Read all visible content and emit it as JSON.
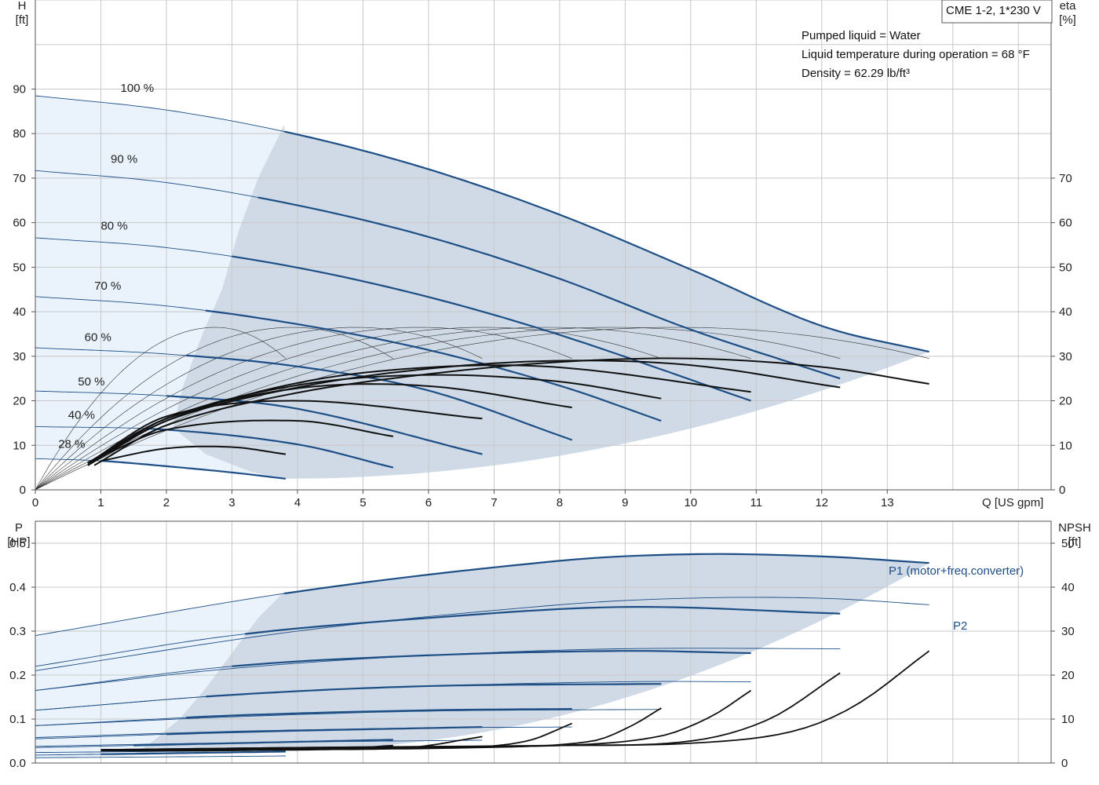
{
  "colors": {
    "grid": "#c8c8c8",
    "frame": "#555555",
    "region_light": "#eaf3fc",
    "region_dark": "#cfdae6",
    "pump_curve": "#1d4e85",
    "eff_curve": "#111111",
    "thin_line": "#333333"
  },
  "chart_data": [
    {
      "type": "line",
      "title": "CME 1-2, 1*230 V",
      "annotations": [
        "Pumped liquid = Water",
        "Liquid temperature during operation = 68 °F",
        "Density = 62.29 lb/ft³"
      ],
      "xlabel": "Q [US gpm]",
      "ylabel": "H\n[ft]",
      "y2label": "eta\n[%]",
      "ylabel_top": "H",
      "ylabel_unit": "[ft]",
      "y2label_top": "eta",
      "y2label_unit": "[%]",
      "xlim": [
        0,
        15.5
      ],
      "ylim": [
        0,
        110
      ],
      "y2lim": [
        0,
        110
      ],
      "x_ticks": [
        0,
        1,
        2,
        3,
        4,
        5,
        6,
        7,
        8,
        9,
        10,
        11,
        12,
        13
      ],
      "y_ticks": [
        0,
        10,
        20,
        30,
        40,
        50,
        60,
        70,
        80,
        90
      ],
      "y2_ticks": [
        0,
        10,
        20,
        30,
        40,
        50,
        60,
        70
      ],
      "grid": true,
      "series": [
        {
          "name": "100 %",
          "x": [
            0,
            2,
            4,
            6,
            8,
            10,
            12,
            13.64
          ],
          "values": [
            88.5,
            85.3,
            79.8,
            72,
            61.8,
            49.5,
            36.8,
            31
          ]
        },
        {
          "name": "90 %",
          "x": [
            0,
            2,
            4,
            6,
            8,
            10,
            12.28
          ],
          "values": [
            71.7,
            69,
            63.9,
            56.8,
            47.4,
            36,
            25
          ]
        },
        {
          "name": "80 %",
          "x": [
            0,
            2,
            4,
            6,
            8,
            10.92
          ],
          "values": [
            56.6,
            54.4,
            49.9,
            43.3,
            34.8,
            20
          ]
        },
        {
          "name": "70 %",
          "x": [
            0,
            2,
            4,
            6,
            8,
            9.55
          ],
          "values": [
            43.4,
            41.3,
            37.2,
            31.4,
            23.4,
            15.5
          ]
        },
        {
          "name": "60 %",
          "x": [
            0,
            2,
            4,
            6,
            8.19
          ],
          "values": [
            31.9,
            30.5,
            27.7,
            22.3,
            11.2
          ]
        },
        {
          "name": "50 %",
          "x": [
            0,
            2,
            4,
            6.82
          ],
          "values": [
            22.2,
            21.1,
            18.2,
            8
          ]
        },
        {
          "name": "40 %",
          "x": [
            0,
            2,
            4,
            5.46
          ],
          "values": [
            14.2,
            13.5,
            10.2,
            5
          ]
        },
        {
          "name": "28 %",
          "x": [
            0,
            1,
            2,
            3,
            3.82
          ],
          "values": [
            7,
            6.5,
            5.3,
            3.9,
            2.5
          ]
        }
      ],
      "efficiency": [
        {
          "speed": "100 %",
          "x": [
            0.9,
            2,
            4,
            6,
            8,
            10,
            12,
            13.64
          ],
          "values": [
            5.5,
            14.5,
            21.8,
            26,
            28.7,
            29.5,
            27.6,
            23.8
          ]
        },
        {
          "speed": "90 %",
          "x": [
            0.8,
            2,
            4,
            6,
            8,
            10,
            12.28
          ],
          "values": [
            5.5,
            15.5,
            23,
            27.2,
            29,
            28,
            23
          ]
        },
        {
          "speed": "80 %",
          "x": [
            0.8,
            2,
            4,
            6,
            8,
            10.92
          ],
          "values": [
            5.5,
            15.5,
            24,
            27.5,
            27.5,
            22
          ]
        },
        {
          "speed": "70 %",
          "x": [
            0.8,
            2,
            4,
            6,
            8,
            9.55
          ],
          "values": [
            5.5,
            16,
            23.5,
            25.8,
            24.3,
            20.5
          ]
        },
        {
          "speed": "60 %",
          "x": [
            0.8,
            2,
            4,
            6,
            8.19
          ],
          "values": [
            6,
            16,
            22.8,
            23.3,
            18.5
          ]
        },
        {
          "speed": "50 %",
          "x": [
            0.8,
            2,
            4,
            6.82
          ],
          "values": [
            6,
            16.5,
            20,
            16
          ]
        },
        {
          "speed": "40 %",
          "x": [
            0.8,
            2,
            4,
            5.46
          ],
          "values": [
            6,
            13.5,
            15.5,
            12
          ]
        },
        {
          "speed": "28 %",
          "x": [
            1,
            2,
            3,
            3.82
          ],
          "values": [
            6.5,
            9.3,
            9.6,
            8
          ]
        }
      ],
      "eta_max_ft": 36.5,
      "speed_label_positions": [
        {
          "label": "100 %",
          "x": 1.3,
          "y": 88
        },
        {
          "label": "90 %",
          "x": 1.15,
          "y": 72
        },
        {
          "label": "80 %",
          "x": 1.0,
          "y": 57
        },
        {
          "label": "70 %",
          "x": 0.9,
          "y": 43.5
        },
        {
          "label": "60 %",
          "x": 0.75,
          "y": 32
        },
        {
          "label": "50 %",
          "x": 0.65,
          "y": 22
        },
        {
          "label": "40 %",
          "x": 0.5,
          "y": 14.5
        },
        {
          "label": "28 %",
          "x": 0.35,
          "y": 8
        }
      ]
    },
    {
      "type": "line",
      "xlabel": "",
      "ylabel": "P\n[HP]",
      "y2label": "NPSH\n[ft]",
      "ylabel_top": "P",
      "ylabel_unit": "[HP]",
      "y2label_top": "NPSH",
      "y2label_unit": "[ft]",
      "xlim": [
        0,
        15.5
      ],
      "ylim": [
        0,
        0.55
      ],
      "y2lim": [
        0,
        55
      ],
      "y_ticks": [
        0.0,
        0.1,
        0.2,
        0.3,
        0.4,
        0.5
      ],
      "y_tick_labels": [
        "0.0",
        "0.1",
        "0.2",
        "0.3",
        "0.4",
        "0.5"
      ],
      "y2_ticks": [
        0,
        10,
        20,
        30,
        40,
        50
      ],
      "grid": true,
      "labels": {
        "p1": "P1 (motor+freq.converter)",
        "p2": "P2"
      },
      "p1": [
        {
          "speed": "100 %",
          "x": [
            0,
            4,
            8,
            10,
            12,
            13.64
          ],
          "values": [
            0.29,
            0.39,
            0.46,
            0.475,
            0.47,
            0.455
          ]
        },
        {
          "speed": "90 %",
          "x": [
            0,
            3,
            6,
            9,
            12.28
          ],
          "values": [
            0.22,
            0.29,
            0.33,
            0.355,
            0.34
          ]
        },
        {
          "speed": "80 %",
          "x": [
            0,
            3,
            6,
            9,
            10.92
          ],
          "values": [
            0.165,
            0.22,
            0.245,
            0.255,
            0.25
          ]
        },
        {
          "speed": "70 %",
          "x": [
            0,
            3,
            6,
            9.55
          ],
          "values": [
            0.12,
            0.155,
            0.175,
            0.18
          ]
        },
        {
          "speed": "60 %",
          "x": [
            0,
            3,
            6,
            8.19
          ],
          "values": [
            0.085,
            0.108,
            0.12,
            0.123
          ]
        },
        {
          "speed": "50 %",
          "x": [
            0,
            3,
            6.82
          ],
          "values": [
            0.055,
            0.07,
            0.082
          ]
        },
        {
          "speed": "40 %",
          "x": [
            0,
            3,
            5.46
          ],
          "values": [
            0.035,
            0.045,
            0.053
          ]
        },
        {
          "speed": "28 %",
          "x": [
            0,
            2,
            3.82
          ],
          "values": [
            0.018,
            0.022,
            0.026
          ]
        }
      ],
      "p2": [
        {
          "speed": "100 %",
          "x": [
            0,
            4,
            8,
            10,
            12,
            13.64
          ],
          "values": [
            0.21,
            0.3,
            0.36,
            0.375,
            0.375,
            0.36
          ]
        },
        {
          "speed": "90 %",
          "x": [
            0,
            3,
            6,
            9,
            12.28
          ],
          "values": [
            0.165,
            0.215,
            0.245,
            0.26,
            0.26
          ]
        },
        {
          "speed": "80 %",
          "x": [
            0,
            3,
            6,
            9,
            10.92
          ],
          "values": [
            0.12,
            0.155,
            0.175,
            0.185,
            0.185
          ]
        },
        {
          "speed": "70 %",
          "x": [
            0,
            3,
            6,
            9.55
          ],
          "values": [
            0.085,
            0.105,
            0.118,
            0.122
          ]
        },
        {
          "speed": "60 %",
          "x": [
            0,
            3,
            6,
            8.19
          ],
          "values": [
            0.058,
            0.072,
            0.08,
            0.082
          ]
        },
        {
          "speed": "50 %",
          "x": [
            0,
            3,
            6.82
          ],
          "values": [
            0.038,
            0.046,
            0.052
          ]
        },
        {
          "speed": "40 %",
          "x": [
            0,
            3,
            5.46
          ],
          "values": [
            0.024,
            0.028,
            0.032
          ]
        },
        {
          "speed": "28 %",
          "x": [
            0,
            2,
            3.82
          ],
          "values": [
            0.012,
            0.014,
            0.016
          ]
        }
      ],
      "npsh": [
        {
          "speed": "100 %",
          "x": [
            1,
            4,
            8,
            10,
            11.5,
            12.5,
            13.64
          ],
          "values": [
            3,
            3.5,
            4,
            4.5,
            7,
            13,
            25.5
          ]
        },
        {
          "speed": "90 %",
          "x": [
            1,
            4,
            8,
            10,
            11.2,
            12.28
          ],
          "values": [
            3,
            3.5,
            4,
            5,
            10,
            20.5
          ]
        },
        {
          "speed": "80 %",
          "x": [
            1,
            4,
            8,
            9.5,
            10.3,
            10.92
          ],
          "values": [
            3,
            3.3,
            4,
            6,
            10.5,
            16.5
          ]
        },
        {
          "speed": "70 %",
          "x": [
            1,
            4,
            7,
            8.5,
            9.1,
            9.55
          ],
          "values": [
            3,
            3.3,
            3.6,
            5,
            8.5,
            12.5
          ]
        },
        {
          "speed": "60 %",
          "x": [
            1,
            4,
            6.5,
            7.5,
            8.19
          ],
          "values": [
            3,
            3.2,
            3.5,
            5,
            9
          ]
        },
        {
          "speed": "50 %",
          "x": [
            1,
            4,
            5.7,
            6.82
          ],
          "values": [
            3,
            3.1,
            3.5,
            6
          ]
        },
        {
          "speed": "40 %",
          "x": [
            1,
            3,
            4.5,
            5.46
          ],
          "values": [
            3,
            3,
            3.1,
            4
          ]
        },
        {
          "speed": "28 %",
          "x": [
            1,
            2.5,
            3.82
          ],
          "values": [
            2.8,
            2.8,
            3
          ]
        }
      ]
    }
  ]
}
